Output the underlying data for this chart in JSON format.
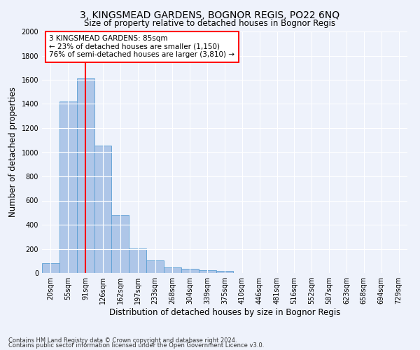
{
  "title": "3, KINGSMEAD GARDENS, BOGNOR REGIS, PO22 6NQ",
  "subtitle": "Size of property relative to detached houses in Bognor Regis",
  "xlabel": "Distribution of detached houses by size in Bognor Regis",
  "ylabel": "Number of detached properties",
  "bar_labels": [
    "20sqm",
    "55sqm",
    "91sqm",
    "126sqm",
    "162sqm",
    "197sqm",
    "233sqm",
    "268sqm",
    "304sqm",
    "339sqm",
    "375sqm",
    "410sqm",
    "446sqm",
    "481sqm",
    "516sqm",
    "552sqm",
    "587sqm",
    "623sqm",
    "658sqm",
    "694sqm",
    "729sqm"
  ],
  "bar_values": [
    80,
    1420,
    1610,
    1055,
    480,
    205,
    105,
    48,
    35,
    25,
    20,
    0,
    0,
    0,
    0,
    0,
    0,
    0,
    0,
    0,
    0
  ],
  "bar_color": "#aec6e8",
  "bar_edge_color": "#5a9fd4",
  "vline_x": 2.0,
  "vline_color": "red",
  "annotation_text": "3 KINGSMEAD GARDENS: 85sqm\n← 23% of detached houses are smaller (1,150)\n76% of semi-detached houses are larger (3,810) →",
  "annotation_box_color": "white",
  "annotation_box_edge_color": "red",
  "ylim": [
    0,
    2000
  ],
  "yticks": [
    0,
    200,
    400,
    600,
    800,
    1000,
    1200,
    1400,
    1600,
    1800,
    2000
  ],
  "footer1": "Contains HM Land Registry data © Crown copyright and database right 2024.",
  "footer2": "Contains public sector information licensed under the Open Government Licence v3.0.",
  "background_color": "#eef2fb",
  "grid_color": "#ffffff",
  "title_fontsize": 10,
  "axis_label_fontsize": 8.5,
  "tick_fontsize": 7,
  "annotation_fontsize": 7.5
}
